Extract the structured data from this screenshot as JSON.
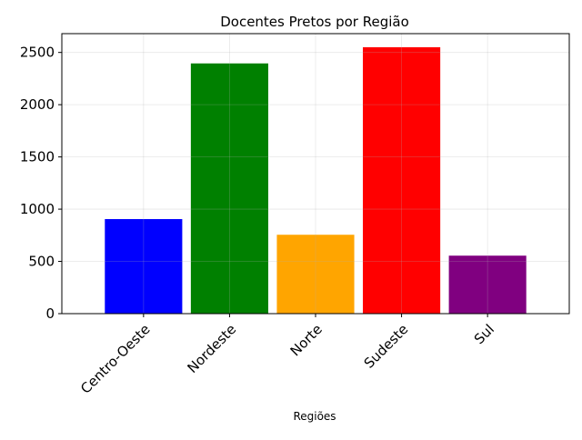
{
  "chart_data": {
    "type": "bar",
    "title": "Docentes Pretos por Região",
    "xlabel": "Regiões",
    "ylabel": "",
    "categories": [
      "Centro-Oeste",
      "Nordeste",
      "Norte",
      "Sudeste",
      "Sul"
    ],
    "values": [
      905,
      2395,
      755,
      2550,
      555
    ],
    "colors": [
      "#0000ff",
      "#008000",
      "#ffa500",
      "#ff0000",
      "#800080"
    ],
    "ylim": [
      0,
      2680
    ],
    "yticks": [
      0,
      500,
      1000,
      1500,
      2000,
      2500
    ],
    "grid": true,
    "legend": "none"
  }
}
